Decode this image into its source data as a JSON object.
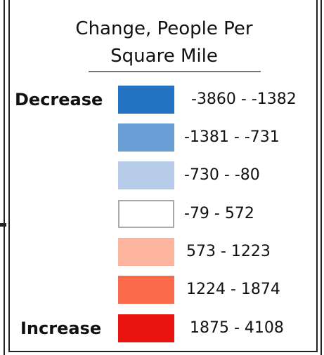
{
  "legend": {
    "title_line1": "Change, People Per",
    "title_line2": "Square Mile",
    "decrease_label": "Decrease",
    "increase_label": "Increase",
    "classes": [
      {
        "range": "-3860 - -1382",
        "color": "#2474c4"
      },
      {
        "range": "-1381 - -731",
        "color": "#6a9fd6"
      },
      {
        "range": "-730 - -80",
        "color": "#b6cce9"
      },
      {
        "range": "-79 - 572",
        "color": "#ffffff"
      },
      {
        "range": "573 - 1223",
        "color": "#fdb5a0"
      },
      {
        "range": "1224 - 1874",
        "color": "#fc6a4c"
      },
      {
        "range": "1875 - 4108",
        "color": "#e8130f"
      }
    ]
  }
}
